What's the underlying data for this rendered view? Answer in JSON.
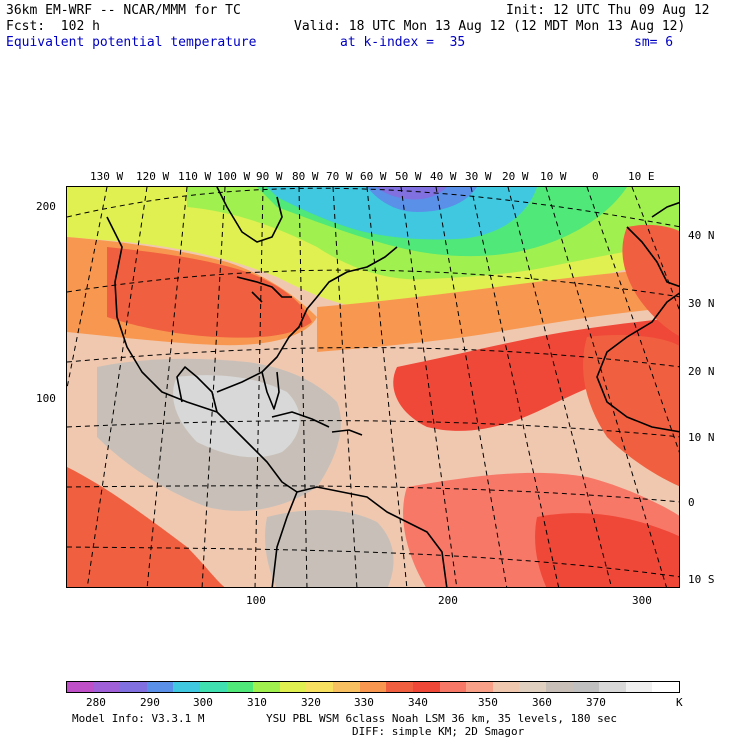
{
  "header": {
    "model_line": "36km EM-WRF -- NCAR/MMM for TC",
    "init_line": "Init: 12 UTC Thu 09 Aug 12",
    "fcst_line": "Fcst:  102 h",
    "valid_line": "Valid: 18 UTC Mon 13 Aug 12 (12 MDT Mon 13 Aug 12)",
    "field_name": "Equivalent potential temperature",
    "level_text": "at k-index =  35",
    "smoothing": "sm= 6"
  },
  "map": {
    "top_longitude_labels": [
      "130 W",
      "120 W",
      "110 W",
      "100 W",
      "90 W",
      "80 W",
      "70 W",
      "60 W",
      "50 W",
      "40 W",
      "30 W",
      "20 W",
      "10 W",
      "0",
      "10 E"
    ],
    "right_latitude_labels": [
      "40 N",
      "30 N",
      "20 N",
      "10 N",
      "0",
      "10 S"
    ],
    "left_grid_labels": [
      "200",
      "100"
    ],
    "bottom_grid_labels": [
      "100",
      "200",
      "300"
    ]
  },
  "colorbar": {
    "colors": [
      "#c050c8",
      "#a060d8",
      "#8070e0",
      "#5a90e8",
      "#40c8e0",
      "#40e0b0",
      "#50e878",
      "#a0f050",
      "#e0f050",
      "#f8e060",
      "#f8c060",
      "#f89850",
      "#f06040",
      "#f04838",
      "#f87868",
      "#f8a088",
      "#f0c8b0",
      "#e0d0c0",
      "#c8c0b8",
      "#c0c0c0",
      "#d8d8d8",
      "#f0f0f0",
      "#ffffff"
    ],
    "tick_labels": [
      "280",
      "290",
      "300",
      "310",
      "320",
      "330",
      "340",
      "350",
      "360",
      "370",
      "K"
    ]
  },
  "footer": {
    "model_info": "Model Info: V3.3.1 M",
    "physics": "YSU PBL  WSM 6class  Noah LSM  36 km,   35 levels,  180 sec",
    "diffusion": "DIFF: simple KM; 2D Smagor"
  }
}
